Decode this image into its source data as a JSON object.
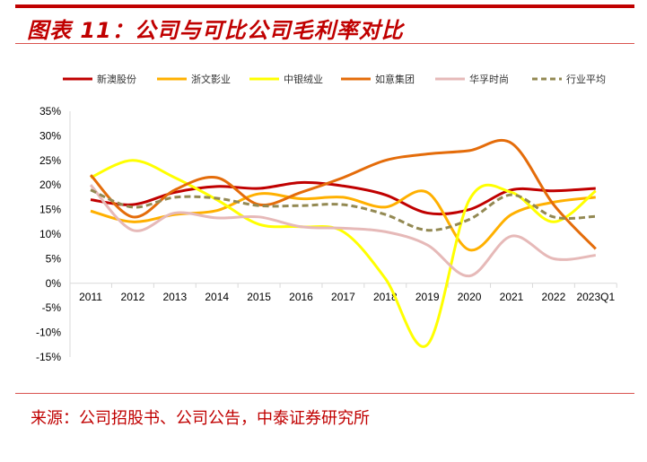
{
  "header": {
    "title": "图表 11：公司与可比公司毛利率对比"
  },
  "footer": {
    "source": "来源：公司招股书、公司公告，中泰证券研究所"
  },
  "chart_data": {
    "type": "line",
    "categories": [
      "2011",
      "2012",
      "2013",
      "2014",
      "2015",
      "2016",
      "2017",
      "2018",
      "2019",
      "2020",
      "2021",
      "2022",
      "2023Q1"
    ],
    "ylim": [
      -15,
      35
    ],
    "yticks": [
      35,
      30,
      25,
      20,
      15,
      10,
      5,
      0,
      -5,
      -10,
      -15
    ],
    "ytick_labels": [
      "35%",
      "30%",
      "25%",
      "20%",
      "15%",
      "10%",
      "5%",
      "0%",
      "-5%",
      "-10%",
      "-15%"
    ],
    "legend_position": "top",
    "grid": false,
    "smooth": true,
    "series": [
      {
        "name": "新澳股份",
        "color": "#c00000",
        "dashed": false,
        "values": [
          17,
          16,
          18.5,
          19.7,
          19.3,
          20.5,
          19.8,
          18,
          14.3,
          15,
          19,
          18.8,
          19.3
        ]
      },
      {
        "name": "浙文影业",
        "color": "#ffb000",
        "dashed": false,
        "values": [
          14.7,
          12.5,
          14,
          14.8,
          18.2,
          17.2,
          17.5,
          15.5,
          18.5,
          6.8,
          14,
          16.5,
          17.5
        ]
      },
      {
        "name": "中银绒业",
        "color": "#ffff00",
        "dashed": false,
        "values": [
          21.5,
          25,
          21.5,
          17,
          12,
          11.5,
          10.5,
          1,
          -12.5,
          17,
          18.5,
          12.5,
          18.8
        ]
      },
      {
        "name": "如意集团",
        "color": "#e46c0a",
        "dashed": false,
        "values": [
          22,
          13.5,
          19,
          21.5,
          16,
          18.5,
          21.5,
          25,
          26.3,
          27,
          28.5,
          16,
          7
        ]
      },
      {
        "name": "华孚时尚",
        "color": "#e6b9b8",
        "dashed": false,
        "values": [
          20,
          10.8,
          14.3,
          13.3,
          13.5,
          11.5,
          11.2,
          10.5,
          7.8,
          1.5,
          9.6,
          5,
          5.7
        ]
      },
      {
        "name": "行业平均",
        "color": "#938953",
        "dashed": true,
        "values": [
          19,
          15.5,
          17.5,
          17.3,
          15.8,
          15.8,
          16,
          14,
          10.8,
          13,
          18,
          13.5,
          13.6
        ]
      }
    ]
  }
}
